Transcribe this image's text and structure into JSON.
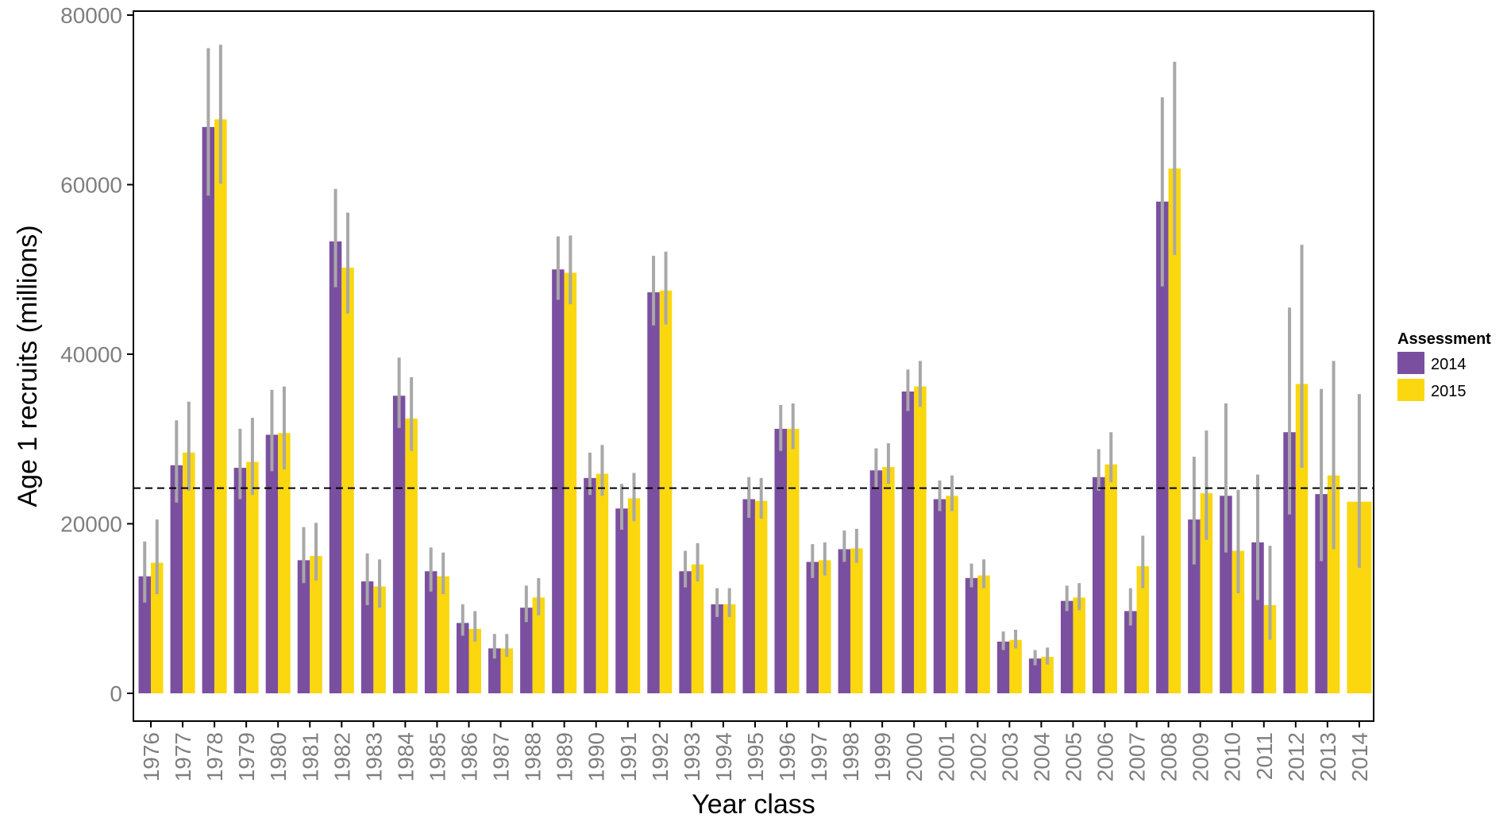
{
  "chart_data": {
    "type": "bar",
    "xlabel": "Year class",
    "ylabel": "Age 1 recruits (millions)",
    "ylim": [
      0,
      80000
    ],
    "yticks": [
      0,
      20000,
      40000,
      60000,
      80000
    ],
    "reference_line": 24200,
    "legend": {
      "title": "Assessment",
      "placement": "right"
    },
    "colors": {
      "2014": "#7b4fa0",
      "2015": "#fad70f",
      "error_bar": "#a8a8a8",
      "reference_line": "#000000"
    },
    "categories": [
      "1976",
      "1977",
      "1978",
      "1979",
      "1980",
      "1981",
      "1982",
      "1983",
      "1984",
      "1985",
      "1986",
      "1987",
      "1988",
      "1989",
      "1990",
      "1991",
      "1992",
      "1993",
      "1994",
      "1995",
      "1996",
      "1997",
      "1998",
      "1999",
      "2000",
      "2001",
      "2002",
      "2003",
      "2004",
      "2005",
      "2006",
      "2007",
      "2008",
      "2009",
      "2010",
      "2011",
      "2012",
      "2013",
      "2014"
    ],
    "series": [
      {
        "name": "2014",
        "values": [
          13800,
          26900,
          66800,
          26600,
          30500,
          15700,
          53300,
          13200,
          35100,
          14400,
          8300,
          5300,
          10100,
          50000,
          25400,
          21800,
          47300,
          14400,
          10500,
          22900,
          31200,
          15500,
          17000,
          26300,
          35600,
          22900,
          13600,
          6100,
          4100,
          10900,
          25500,
          9700,
          58000,
          20500,
          23300,
          17800,
          30800,
          23500,
          null
        ],
        "error_low": [
          10700,
          22500,
          58700,
          22900,
          26200,
          13000,
          47900,
          10400,
          31300,
          12000,
          6800,
          4100,
          8400,
          46400,
          23400,
          19300,
          43400,
          12500,
          9000,
          20700,
          28600,
          13600,
          15500,
          24300,
          33300,
          21500,
          12500,
          5100,
          3300,
          9700,
          23900,
          8000,
          48000,
          15200,
          16600,
          11000,
          21100,
          15600,
          null
        ],
        "error_high": [
          17900,
          32200,
          76100,
          31200,
          35800,
          19600,
          59500,
          16500,
          39600,
          17200,
          10500,
          7000,
          12700,
          53900,
          28400,
          24700,
          51600,
          16800,
          12400,
          25500,
          34000,
          17600,
          19200,
          28900,
          38200,
          25100,
          15300,
          7300,
          5100,
          12700,
          28800,
          12400,
          70300,
          27900,
          34200,
          25800,
          45500,
          35900,
          null
        ]
      },
      {
        "name": "2015",
        "values": [
          15400,
          28400,
          67700,
          27300,
          30700,
          16200,
          50200,
          12600,
          32400,
          13800,
          7600,
          5300,
          11300,
          49600,
          25900,
          23000,
          47500,
          15200,
          10500,
          22700,
          31200,
          15700,
          17100,
          26700,
          36200,
          23300,
          13900,
          6300,
          4300,
          11300,
          27000,
          15000,
          61900,
          23600,
          16800,
          10400,
          36500,
          25700,
          22600
        ],
        "error_low": [
          11700,
          23900,
          60100,
          23400,
          26400,
          13300,
          44800,
          10100,
          28600,
          11700,
          6100,
          4300,
          9200,
          45900,
          23300,
          20300,
          43500,
          13200,
          9000,
          20600,
          28800,
          13900,
          15400,
          24700,
          33800,
          21500,
          12400,
          5300,
          3400,
          9800,
          24900,
          12400,
          51700,
          18100,
          11800,
          6300,
          26600,
          17000,
          14800
        ],
        "error_high": [
          20500,
          34400,
          76500,
          32500,
          36200,
          20100,
          56700,
          15800,
          37300,
          16600,
          9700,
          7000,
          13600,
          54000,
          29300,
          26000,
          52100,
          17700,
          12400,
          25400,
          34200,
          17800,
          19400,
          29500,
          39200,
          25700,
          15800,
          7500,
          5400,
          13000,
          30800,
          18600,
          74500,
          31000,
          24000,
          17400,
          52900,
          39200,
          35300
        ]
      }
    ]
  }
}
